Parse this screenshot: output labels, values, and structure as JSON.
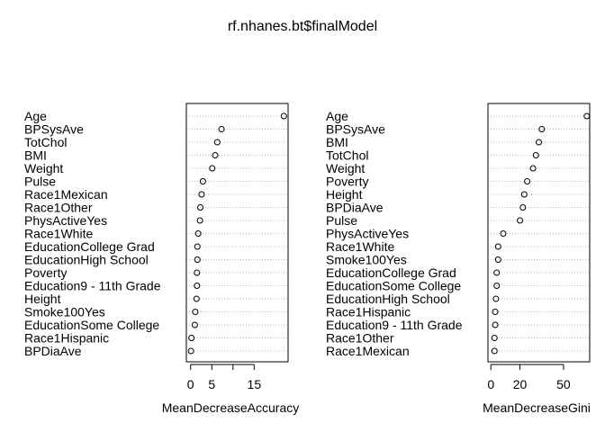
{
  "title": "rf.nhanes.bt$finalModel",
  "colors": {
    "background": "#ffffff",
    "ink": "#000000",
    "guide": "#bebebe"
  },
  "chart_data": [
    {
      "type": "scatter",
      "name": "accuracy",
      "xlabel": "MeanDecreaseAccuracy",
      "xlim": [
        -1,
        23
      ],
      "xticks": [
        0,
        5,
        10,
        15
      ],
      "xtick_labels": [
        "0",
        "5",
        "",
        "15"
      ],
      "dotted_guides": true,
      "categories": [
        "Age",
        "BPSysAve",
        "TotChol",
        "BMI",
        "Weight",
        "Pulse",
        "Race1Mexican",
        "Race1Other",
        "PhysActiveYes",
        "Race1White",
        "EducationCollege Grad",
        "EducationHigh School",
        "Poverty",
        "Education9 - 11th Grade",
        "Height",
        "Smoke100Yes",
        "EducationSome College",
        "Race1Hispanic",
        "BPDiaAve"
      ],
      "values": [
        22,
        7.3,
        6.3,
        5.8,
        5.1,
        2.9,
        2.6,
        2.3,
        2.2,
        1.8,
        1.6,
        1.6,
        1.5,
        1.5,
        1.4,
        1.1,
        1.0,
        0.2,
        0.1
      ]
    },
    {
      "type": "scatter",
      "name": "gini",
      "xlabel": "MeanDecreaseGini",
      "xlim": [
        -2,
        68
      ],
      "xticks": [
        0,
        20,
        50
      ],
      "xtick_labels": [
        "0",
        "20",
        "50"
      ],
      "dotted_guides": true,
      "categories": [
        "Age",
        "BPSysAve",
        "BMI",
        "TotChol",
        "Weight",
        "Poverty",
        "Height",
        "BPDiaAve",
        "Pulse",
        "PhysActiveYes",
        "Race1White",
        "Smoke100Yes",
        "EducationCollege Grad",
        "EducationSome College",
        "EducationHigh School",
        "Race1Hispanic",
        "Education9 - 11th Grade",
        "Race1Other",
        "Race1Mexican"
      ],
      "values": [
        66,
        35,
        33,
        31,
        29,
        25,
        23,
        22,
        20,
        8.5,
        5,
        5,
        4,
        4,
        3.5,
        3,
        3,
        2.5,
        2.5
      ]
    }
  ]
}
